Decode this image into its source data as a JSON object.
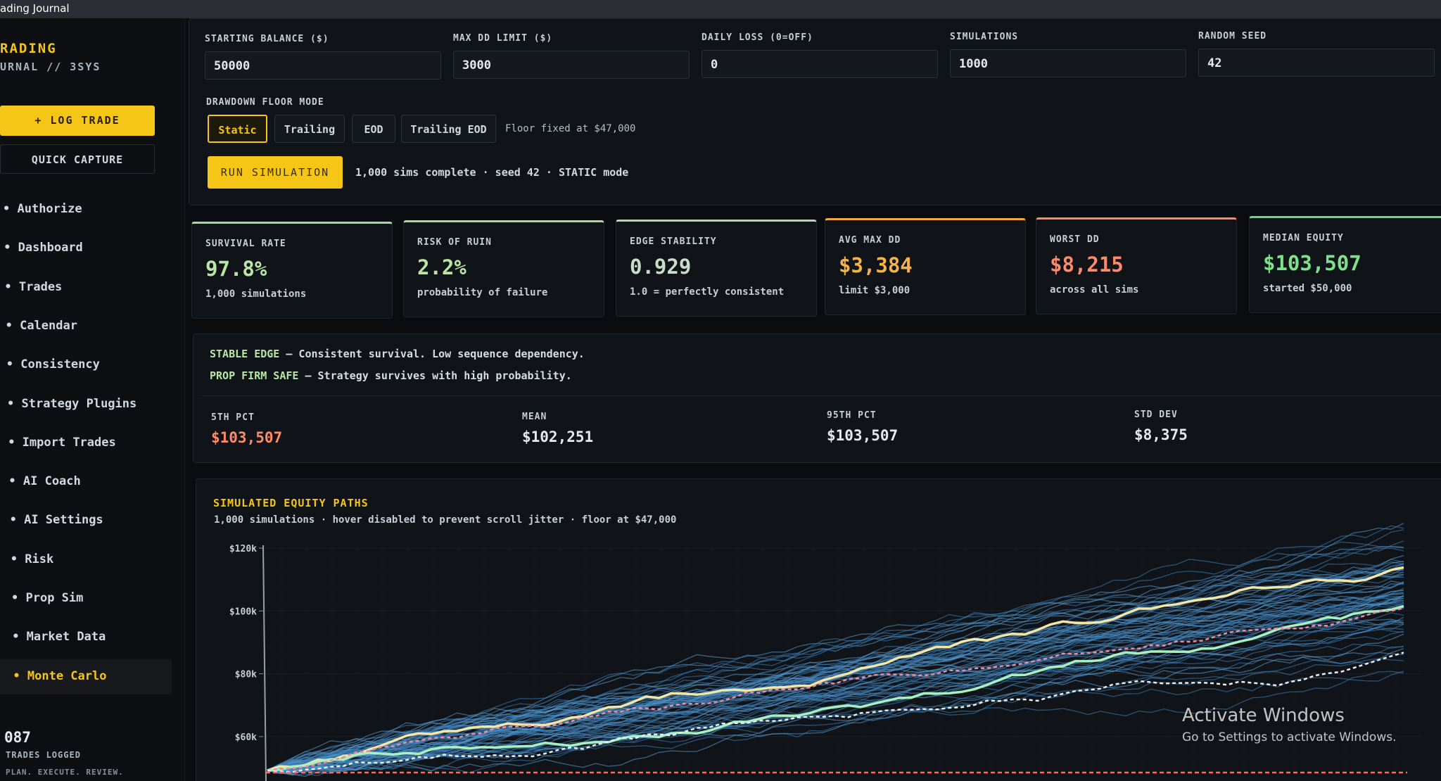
{
  "window": {
    "title": "ading Journal"
  },
  "sidebar": {
    "brand": "RADING",
    "brand_sub": "URNAL // 3SYS",
    "buttons": [
      "+ LOG TRADE",
      "QUICK CAPTURE"
    ],
    "nav": [
      "Authorize",
      "Dashboard",
      "Trades",
      "Calendar",
      "Consistency",
      "Strategy Plugins",
      "Import Trades",
      "AI Coach",
      "AI Settings",
      "Risk",
      "Prop Sim",
      "Market Data",
      "Monte Carlo"
    ],
    "footer": {
      "count": "087",
      "label": "TRADES LOGGED",
      "tagline": "PLAN. EXECUTE. REVIEW."
    }
  },
  "inputs": [
    {
      "label": "STARTING BALANCE ($)",
      "value": "50000"
    },
    {
      "label": "MAX DD LIMIT ($)",
      "value": "3000"
    },
    {
      "label": "DAILY LOSS (0=OFF)",
      "value": "0"
    },
    {
      "label": "SIMULATIONS",
      "value": "1000"
    },
    {
      "label": "RANDOM SEED",
      "value": "42"
    }
  ],
  "floor_mode": {
    "label": "DRAWDOWN FLOOR MODE",
    "options": [
      "Static",
      "Trailing",
      "EOD",
      "Trailing EOD"
    ],
    "note": "Floor fixed at $47,000"
  },
  "run": {
    "button": "RUN SIMULATION",
    "status": "1,000 sims complete · seed 42 · STATIC mode"
  },
  "cards": [
    {
      "label": "SURVIVAL RATE",
      "value": "97.8%",
      "sub": "1,000 simulations"
    },
    {
      "label": "RISK OF RUIN",
      "value": "2.2%",
      "sub": "probability of failure"
    },
    {
      "label": "EDGE STABILITY",
      "value": "0.929",
      "sub": "1.0 = perfectly consistent"
    },
    {
      "label": "AVG MAX DD",
      "value": "$3,384",
      "sub": "limit $3,000"
    },
    {
      "label": "WORST DD",
      "value": "$8,215",
      "sub": "across all sims"
    },
    {
      "label": "MEDIAN EQUITY",
      "value": "$103,507",
      "sub": "started $50,000"
    }
  ],
  "verdict": [
    {
      "tag": "STABLE EDGE",
      "text": " — Consistent survival. Low sequence dependency."
    },
    {
      "tag": "PROP FIRM SAFE",
      "text": " — Strategy survives with high probability."
    }
  ],
  "stats": [
    {
      "label": "5TH PCT",
      "value": "$103,507"
    },
    {
      "label": "MEAN",
      "value": "$102,251"
    },
    {
      "label": "95TH PCT",
      "value": "$103,507"
    },
    {
      "label": "STD DEV",
      "value": "$8,375"
    }
  ],
  "chart": {
    "title": "SIMULATED EQUITY PATHS",
    "subtitle": "1,000 simulations · hover disabled to prevent scroll jitter · floor at $47,000",
    "yticks": [
      "$120k",
      "$100k",
      "$80k",
      "$60k"
    ]
  },
  "watermark": {
    "title": "Activate Windows",
    "text": "Go to Settings to activate Windows."
  }
}
